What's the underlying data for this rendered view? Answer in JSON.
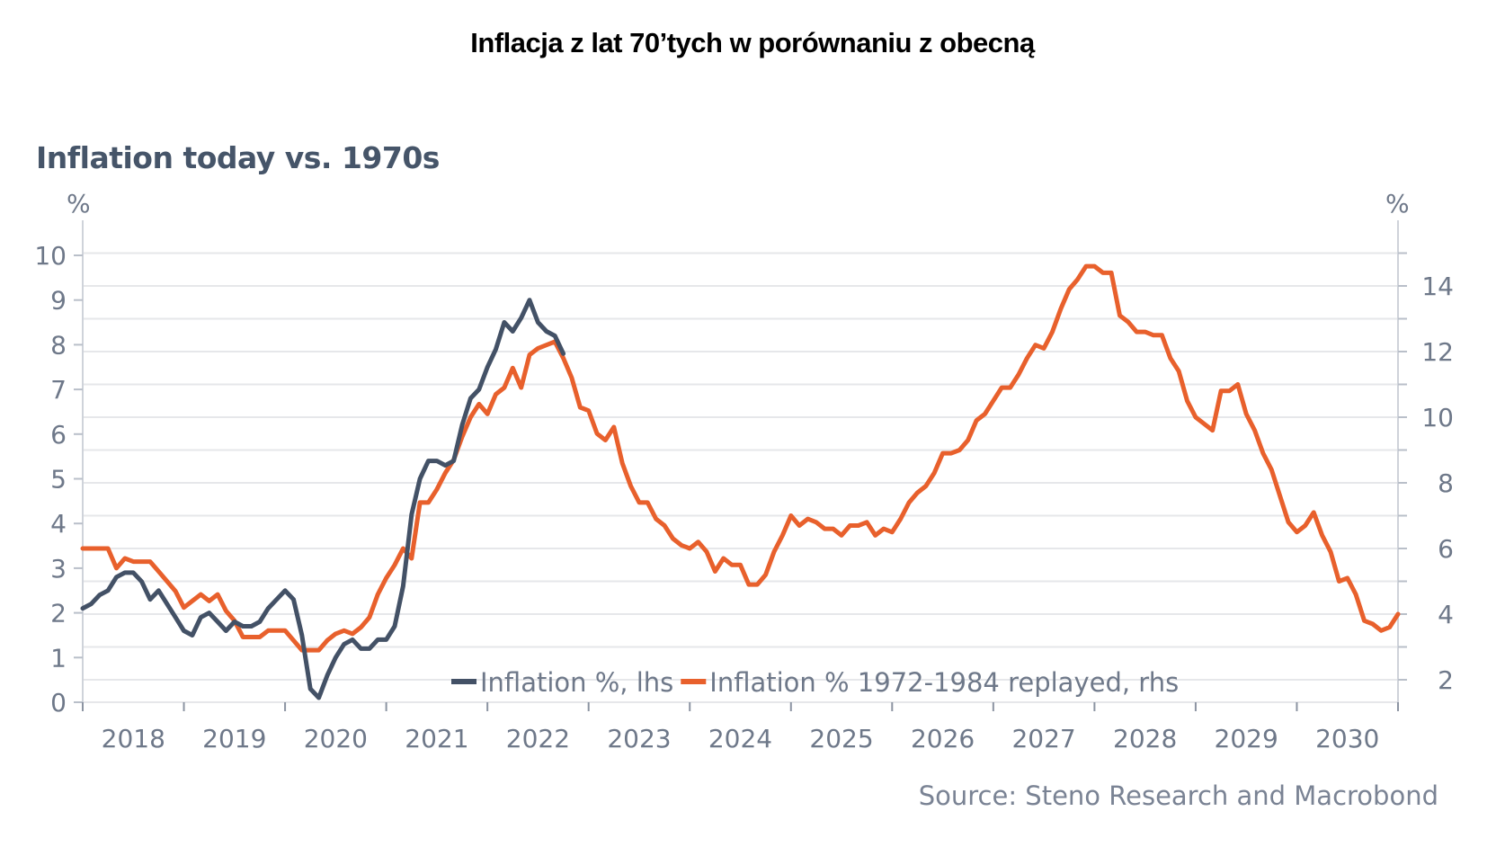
{
  "page_title": "Inflacja z lat 70’tych w porównaniu z obecną",
  "source": "Source: Steno Research and Macrobond",
  "colors": {
    "lhs_series": "#435166",
    "rhs_series": "#e8602c",
    "grid": "#e6e7ea",
    "axis": "#cfd3da",
    "text": "#6e7889"
  },
  "chart_data": {
    "type": "line",
    "title": "Inflation today vs. 1970s",
    "left_axis": {
      "unit": "%",
      "ylim": [
        0,
        10.5
      ],
      "ticks": [
        0,
        1,
        2,
        3,
        4,
        5,
        6,
        7,
        8,
        9,
        10
      ]
    },
    "right_axis": {
      "unit": "%",
      "ylim": [
        1.3,
        15.3
      ],
      "ticks": [
        2,
        4,
        6,
        8,
        10,
        12,
        14
      ],
      "minor_ticks": [
        3,
        5,
        7,
        9,
        11,
        13,
        15
      ]
    },
    "x_axis": {
      "start": "2018-01",
      "end": "2031-01",
      "tick_labels": [
        "2018",
        "2019",
        "2020",
        "2021",
        "2022",
        "2023",
        "2024",
        "2025",
        "2026",
        "2027",
        "2028",
        "2029",
        "2030"
      ]
    },
    "legend": {
      "position": "bottom-center-inside"
    },
    "series": [
      {
        "name": "Inflation %, lhs",
        "axis": "left",
        "start": "2018-01",
        "values": [
          2.1,
          2.2,
          2.4,
          2.5,
          2.8,
          2.9,
          2.9,
          2.7,
          2.3,
          2.5,
          2.2,
          1.9,
          1.6,
          1.5,
          1.9,
          2.0,
          1.8,
          1.6,
          1.8,
          1.7,
          1.7,
          1.8,
          2.1,
          2.3,
          2.5,
          2.3,
          1.5,
          0.3,
          0.1,
          0.6,
          1.0,
          1.3,
          1.4,
          1.2,
          1.2,
          1.4,
          1.4,
          1.7,
          2.6,
          4.2,
          5.0,
          5.4,
          5.4,
          5.3,
          5.4,
          6.2,
          6.8,
          7.0,
          7.5,
          7.9,
          8.5,
          8.3,
          8.6,
          9.0,
          8.5,
          8.3,
          8.2,
          7.8
        ]
      },
      {
        "name": "Inflation % 1972-1984 replayed, rhs",
        "axis": "right",
        "start": "2018-01",
        "values": [
          6.0,
          6.0,
          6.0,
          6.0,
          5.4,
          5.7,
          5.6,
          5.6,
          5.6,
          5.3,
          5.0,
          4.7,
          4.2,
          4.4,
          4.6,
          4.4,
          4.6,
          4.1,
          3.8,
          3.3,
          3.3,
          3.3,
          3.5,
          3.5,
          3.5,
          3.2,
          2.9,
          2.9,
          2.9,
          3.2,
          3.4,
          3.5,
          3.4,
          3.6,
          3.9,
          4.6,
          5.1,
          5.5,
          6.0,
          5.7,
          7.4,
          7.4,
          7.8,
          8.3,
          8.7,
          9.4,
          10.0,
          10.4,
          10.1,
          10.7,
          10.9,
          11.5,
          10.9,
          11.9,
          12.1,
          12.2,
          12.3,
          11.8,
          11.2,
          10.3,
          10.2,
          9.5,
          9.3,
          9.7,
          8.6,
          7.9,
          7.4,
          7.4,
          6.9,
          6.7,
          6.3,
          6.1,
          6.0,
          6.2,
          5.9,
          5.3,
          5.7,
          5.5,
          5.5,
          4.9,
          4.9,
          5.2,
          5.9,
          6.4,
          7.0,
          6.7,
          6.9,
          6.8,
          6.6,
          6.6,
          6.4,
          6.7,
          6.7,
          6.8,
          6.4,
          6.6,
          6.5,
          6.9,
          7.4,
          7.7,
          7.9,
          8.3,
          8.9,
          8.9,
          9.0,
          9.3,
          9.9,
          10.1,
          10.5,
          10.9,
          10.9,
          11.3,
          11.8,
          12.2,
          12.1,
          12.6,
          13.3,
          13.9,
          14.2,
          14.6,
          14.6,
          14.4,
          14.4,
          13.1,
          12.9,
          12.6,
          12.6,
          12.5,
          12.5,
          11.8,
          11.4,
          10.5,
          10.0,
          9.8,
          9.6,
          10.8,
          10.8,
          11.0,
          10.1,
          9.6,
          8.9,
          8.4,
          7.6,
          6.8,
          6.5,
          6.7,
          7.1,
          6.4,
          5.9,
          5.0,
          5.1,
          4.6,
          3.8,
          3.7,
          3.5,
          3.6,
          4.0
        ]
      }
    ]
  }
}
